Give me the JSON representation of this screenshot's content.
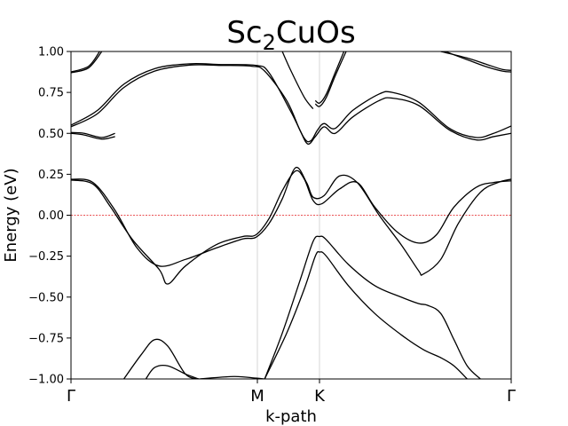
{
  "chart_data": {
    "type": "line",
    "title": "Sc",
    "title_subscript": "2",
    "title_suffix": "CuOs",
    "xlabel": "k-path",
    "ylabel": "Energy (eV)",
    "xlim": [
      0,
      1
    ],
    "ylim": [
      -1.0,
      1.0
    ],
    "yticks": [
      -1.0,
      -0.75,
      -0.5,
      -0.25,
      0.0,
      0.25,
      0.5,
      0.75,
      1.0
    ],
    "ytick_labels": [
      "−1.00",
      "−0.75",
      "−0.50",
      "−0.25",
      "0.00",
      "0.25",
      "0.50",
      "0.75",
      "1.00"
    ],
    "kpoints": [
      {
        "label": "Γ",
        "x": 0.0
      },
      {
        "label": "M",
        "x": 0.4234
      },
      {
        "label": "K",
        "x": 0.5645
      },
      {
        "label": "Γ",
        "x": 1.0
      }
    ],
    "fermi_level": 0.0,
    "colors": {
      "bands": "#000000",
      "fermi": "#e31a1c",
      "kline": "#cccccc"
    },
    "series": [
      {
        "values": [
          [
            0.0,
            0.87
          ],
          [
            0.04,
            0.9
          ],
          [
            0.07,
            1.0
          ]
        ]
      },
      {
        "values": [
          [
            0.0,
            0.875
          ],
          [
            0.04,
            0.91
          ],
          [
            0.065,
            1.0
          ]
        ]
      },
      {
        "values": [
          [
            0.0,
            0.54
          ],
          [
            0.06,
            0.62
          ],
          [
            0.12,
            0.78
          ],
          [
            0.19,
            0.88
          ],
          [
            0.27,
            0.917
          ],
          [
            0.34,
            0.915
          ],
          [
            0.41,
            0.91
          ],
          [
            0.44,
            0.88
          ],
          [
            0.49,
            0.7
          ],
          [
            0.52,
            0.52
          ],
          [
            0.538,
            0.435
          ],
          [
            0.555,
            0.48
          ],
          [
            0.575,
            0.54
          ],
          [
            0.6,
            0.5
          ],
          [
            0.64,
            0.6
          ],
          [
            0.7,
            0.7
          ],
          [
            0.73,
            0.715
          ],
          [
            0.79,
            0.67
          ],
          [
            0.86,
            0.52
          ],
          [
            0.92,
            0.46
          ],
          [
            0.96,
            0.48
          ],
          [
            1.0,
            0.5
          ]
        ]
      },
      {
        "values": [
          [
            0.0,
            0.55
          ],
          [
            0.06,
            0.64
          ],
          [
            0.12,
            0.8
          ],
          [
            0.19,
            0.895
          ],
          [
            0.27,
            0.925
          ],
          [
            0.34,
            0.92
          ],
          [
            0.42,
            0.915
          ],
          [
            0.45,
            0.87
          ],
          [
            0.5,
            0.63
          ],
          [
            0.53,
            0.47
          ],
          [
            0.545,
            0.455
          ],
          [
            0.56,
            0.52
          ],
          [
            0.575,
            0.56
          ],
          [
            0.6,
            0.53
          ],
          [
            0.64,
            0.64
          ],
          [
            0.7,
            0.74
          ],
          [
            0.73,
            0.75
          ],
          [
            0.79,
            0.69
          ],
          [
            0.86,
            0.53
          ],
          [
            0.92,
            0.475
          ],
          [
            0.96,
            0.5
          ],
          [
            1.0,
            0.545
          ]
        ]
      },
      {
        "values": [
          [
            0.0,
            0.5
          ],
          [
            0.03,
            0.49
          ],
          [
            0.07,
            0.465
          ],
          [
            0.1,
            0.48
          ]
        ]
      },
      {
        "values": [
          [
            0.0,
            0.505
          ],
          [
            0.03,
            0.5
          ],
          [
            0.07,
            0.475
          ],
          [
            0.1,
            0.5
          ]
        ]
      },
      {
        "values": [
          [
            0.555,
            0.68
          ],
          [
            0.565,
            0.665
          ],
          [
            0.58,
            0.72
          ],
          [
            0.6,
            0.85
          ],
          [
            0.625,
            1.0
          ]
        ]
      },
      {
        "values": [
          [
            0.555,
            0.7
          ],
          [
            0.565,
            0.685
          ],
          [
            0.58,
            0.74
          ],
          [
            0.6,
            0.87
          ],
          [
            0.62,
            1.0
          ]
        ]
      },
      {
        "values": [
          [
            0.85,
            1.0
          ],
          [
            0.9,
            0.95
          ],
          [
            0.94,
            0.91
          ],
          [
            0.98,
            0.88
          ],
          [
            1.0,
            0.875
          ]
        ]
      },
      {
        "values": [
          [
            0.84,
            1.0
          ],
          [
            0.9,
            0.96
          ],
          [
            0.94,
            0.925
          ],
          [
            0.98,
            0.89
          ],
          [
            1.0,
            0.885
          ]
        ]
      },
      {
        "values": [
          [
            0.48,
            1.0
          ],
          [
            0.5,
            0.88
          ],
          [
            0.53,
            0.72
          ],
          [
            0.55,
            0.65
          ]
        ]
      },
      {
        "values": [
          [
            0.0,
            0.215
          ],
          [
            0.05,
            0.19
          ],
          [
            0.09,
            0.05
          ],
          [
            0.14,
            -0.15
          ],
          [
            0.2,
            -0.33
          ],
          [
            0.22,
            -0.42
          ],
          [
            0.26,
            -0.31
          ],
          [
            0.33,
            -0.18
          ],
          [
            0.39,
            -0.13
          ],
          [
            0.42,
            -0.12
          ],
          [
            0.45,
            -0.02
          ],
          [
            0.48,
            0.15
          ],
          [
            0.51,
            0.27
          ],
          [
            0.53,
            0.22
          ],
          [
            0.55,
            0.09
          ],
          [
            0.57,
            0.07
          ],
          [
            0.61,
            0.16
          ],
          [
            0.65,
            0.2
          ],
          [
            0.69,
            0.05
          ],
          [
            0.74,
            -0.1
          ],
          [
            0.79,
            -0.17
          ],
          [
            0.83,
            -0.12
          ],
          [
            0.87,
            0.05
          ],
          [
            0.92,
            0.17
          ],
          [
            0.96,
            0.2
          ],
          [
            1.0,
            0.21
          ]
        ]
      },
      {
        "values": [
          [
            0.0,
            0.22
          ],
          [
            0.05,
            0.2
          ],
          [
            0.1,
            0.03
          ],
          [
            0.15,
            -0.2
          ],
          [
            0.2,
            -0.31
          ],
          [
            0.26,
            -0.27
          ],
          [
            0.33,
            -0.2
          ],
          [
            0.39,
            -0.145
          ],
          [
            0.42,
            -0.135
          ],
          [
            0.45,
            -0.05
          ],
          [
            0.48,
            0.1
          ],
          [
            0.51,
            0.29
          ],
          [
            0.535,
            0.2
          ],
          [
            0.55,
            0.11
          ],
          [
            0.575,
            0.12
          ],
          [
            0.61,
            0.24
          ],
          [
            0.65,
            0.2
          ],
          [
            0.7,
            0.0
          ],
          [
            0.75,
            -0.18
          ],
          [
            0.79,
            -0.34
          ],
          [
            0.8,
            -0.36
          ],
          [
            0.84,
            -0.27
          ],
          [
            0.88,
            -0.05
          ],
          [
            0.93,
            0.14
          ],
          [
            0.97,
            0.2
          ],
          [
            1.0,
            0.22
          ]
        ]
      },
      {
        "values": [
          [
            0.12,
            -1.0
          ],
          [
            0.16,
            -0.85
          ],
          [
            0.19,
            -0.76
          ],
          [
            0.22,
            -0.8
          ],
          [
            0.26,
            -0.97
          ],
          [
            0.29,
            -1.0
          ]
        ]
      },
      {
        "values": [
          [
            0.17,
            -1.0
          ],
          [
            0.19,
            -0.93
          ],
          [
            0.22,
            -0.92
          ],
          [
            0.26,
            -0.97
          ],
          [
            0.29,
            -1.0
          ]
        ]
      },
      {
        "values": [
          [
            0.29,
            -1.0
          ],
          [
            0.37,
            -0.985
          ],
          [
            0.42,
            -0.995
          ],
          [
            0.44,
            -1.0
          ]
        ]
      },
      {
        "values": [
          [
            0.44,
            -1.0
          ],
          [
            0.48,
            -0.72
          ],
          [
            0.52,
            -0.4
          ],
          [
            0.55,
            -0.16
          ],
          [
            0.565,
            -0.13
          ],
          [
            0.58,
            -0.15
          ],
          [
            0.63,
            -0.3
          ],
          [
            0.69,
            -0.43
          ],
          [
            0.75,
            -0.5
          ],
          [
            0.79,
            -0.54
          ],
          [
            0.81,
            -0.55
          ],
          [
            0.84,
            -0.6
          ],
          [
            0.87,
            -0.76
          ],
          [
            0.9,
            -0.92
          ],
          [
            0.93,
            -1.0
          ]
        ]
      },
      {
        "values": [
          [
            0.44,
            -1.0
          ],
          [
            0.49,
            -0.72
          ],
          [
            0.53,
            -0.45
          ],
          [
            0.555,
            -0.25
          ],
          [
            0.565,
            -0.225
          ],
          [
            0.58,
            -0.25
          ],
          [
            0.63,
            -0.43
          ],
          [
            0.69,
            -0.6
          ],
          [
            0.75,
            -0.73
          ],
          [
            0.8,
            -0.82
          ],
          [
            0.84,
            -0.87
          ],
          [
            0.87,
            -0.92
          ],
          [
            0.9,
            -1.0
          ]
        ]
      }
    ]
  }
}
